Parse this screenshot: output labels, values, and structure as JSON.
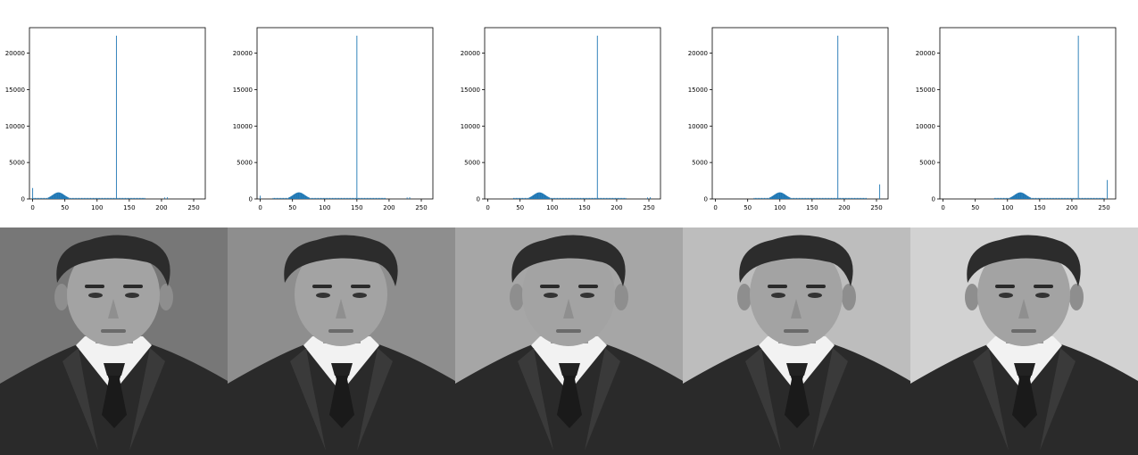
{
  "chart_data": [
    {
      "type": "bar",
      "title": "",
      "xlabel": "",
      "ylabel": "",
      "xlim": [
        -5,
        268
      ],
      "ylim": [
        0,
        23500
      ],
      "x_ticks": [
        0,
        50,
        100,
        150,
        200,
        250
      ],
      "y_ticks": [
        0,
        5000,
        10000,
        15000,
        20000
      ],
      "color": "#1f77b4",
      "spike": {
        "x": 130,
        "y": 22400
      },
      "hump": {
        "center": 40,
        "peak": 900,
        "width": 9
      },
      "floor": {
        "from": 0,
        "to": 175,
        "y": 140
      },
      "edge_bars": [
        {
          "x": 0,
          "y": 1500
        },
        {
          "x": 205,
          "y": 200
        },
        {
          "x": 209,
          "y": 230
        }
      ],
      "background_gray": "#777777"
    },
    {
      "type": "bar",
      "title": "",
      "xlabel": "",
      "ylabel": "",
      "xlim": [
        -5,
        268
      ],
      "ylim": [
        0,
        23500
      ],
      "x_ticks": [
        0,
        50,
        100,
        150,
        200,
        250
      ],
      "y_ticks": [
        0,
        5000,
        10000,
        15000,
        20000
      ],
      "color": "#1f77b4",
      "spike": {
        "x": 150,
        "y": 22400
      },
      "hump": {
        "center": 60,
        "peak": 900,
        "width": 9
      },
      "floor": {
        "from": 20,
        "to": 195,
        "y": 140
      },
      "edge_bars": [
        {
          "x": 0,
          "y": 450
        },
        {
          "x": 228,
          "y": 200
        },
        {
          "x": 232,
          "y": 230
        }
      ],
      "background_gray": "#8e8e8e"
    },
    {
      "type": "bar",
      "title": "",
      "xlabel": "",
      "ylabel": "",
      "xlim": [
        -5,
        268
      ],
      "ylim": [
        0,
        23500
      ],
      "x_ticks": [
        0,
        50,
        100,
        150,
        200,
        250
      ],
      "y_ticks": [
        0,
        5000,
        10000,
        15000,
        20000
      ],
      "color": "#1f77b4",
      "spike": {
        "x": 170,
        "y": 22400
      },
      "hump": {
        "center": 80,
        "peak": 900,
        "width": 9
      },
      "floor": {
        "from": 40,
        "to": 215,
        "y": 140
      },
      "edge_bars": [
        {
          "x": 248,
          "y": 200
        },
        {
          "x": 252,
          "y": 230
        }
      ],
      "background_gray": "#a6a6a6"
    },
    {
      "type": "bar",
      "title": "",
      "xlabel": "",
      "ylabel": "",
      "xlim": [
        -5,
        268
      ],
      "ylim": [
        0,
        23500
      ],
      "x_ticks": [
        0,
        50,
        100,
        150,
        200,
        250
      ],
      "y_ticks": [
        0,
        5000,
        10000,
        15000,
        20000
      ],
      "color": "#1f77b4",
      "spike": {
        "x": 190,
        "y": 22400
      },
      "hump": {
        "center": 100,
        "peak": 900,
        "width": 9
      },
      "floor": {
        "from": 60,
        "to": 235,
        "y": 140
      },
      "edge_bars": [
        {
          "x": 255,
          "y": 2000
        }
      ],
      "background_gray": "#bdbdbd"
    },
    {
      "type": "bar",
      "title": "",
      "xlabel": "",
      "ylabel": "",
      "xlim": [
        -5,
        268
      ],
      "ylim": [
        0,
        23500
      ],
      "x_ticks": [
        0,
        50,
        100,
        150,
        200,
        250
      ],
      "y_ticks": [
        0,
        5000,
        10000,
        15000,
        20000
      ],
      "color": "#1f77b4",
      "spike": {
        "x": 210,
        "y": 22400
      },
      "hump": {
        "center": 120,
        "peak": 900,
        "width": 9
      },
      "floor": {
        "from": 80,
        "to": 250,
        "y": 140
      },
      "edge_bars": [
        {
          "x": 255,
          "y": 2600
        }
      ],
      "background_gray": "#d2d2d2"
    }
  ],
  "icons": {
    "portrait": "portrait-photo"
  }
}
